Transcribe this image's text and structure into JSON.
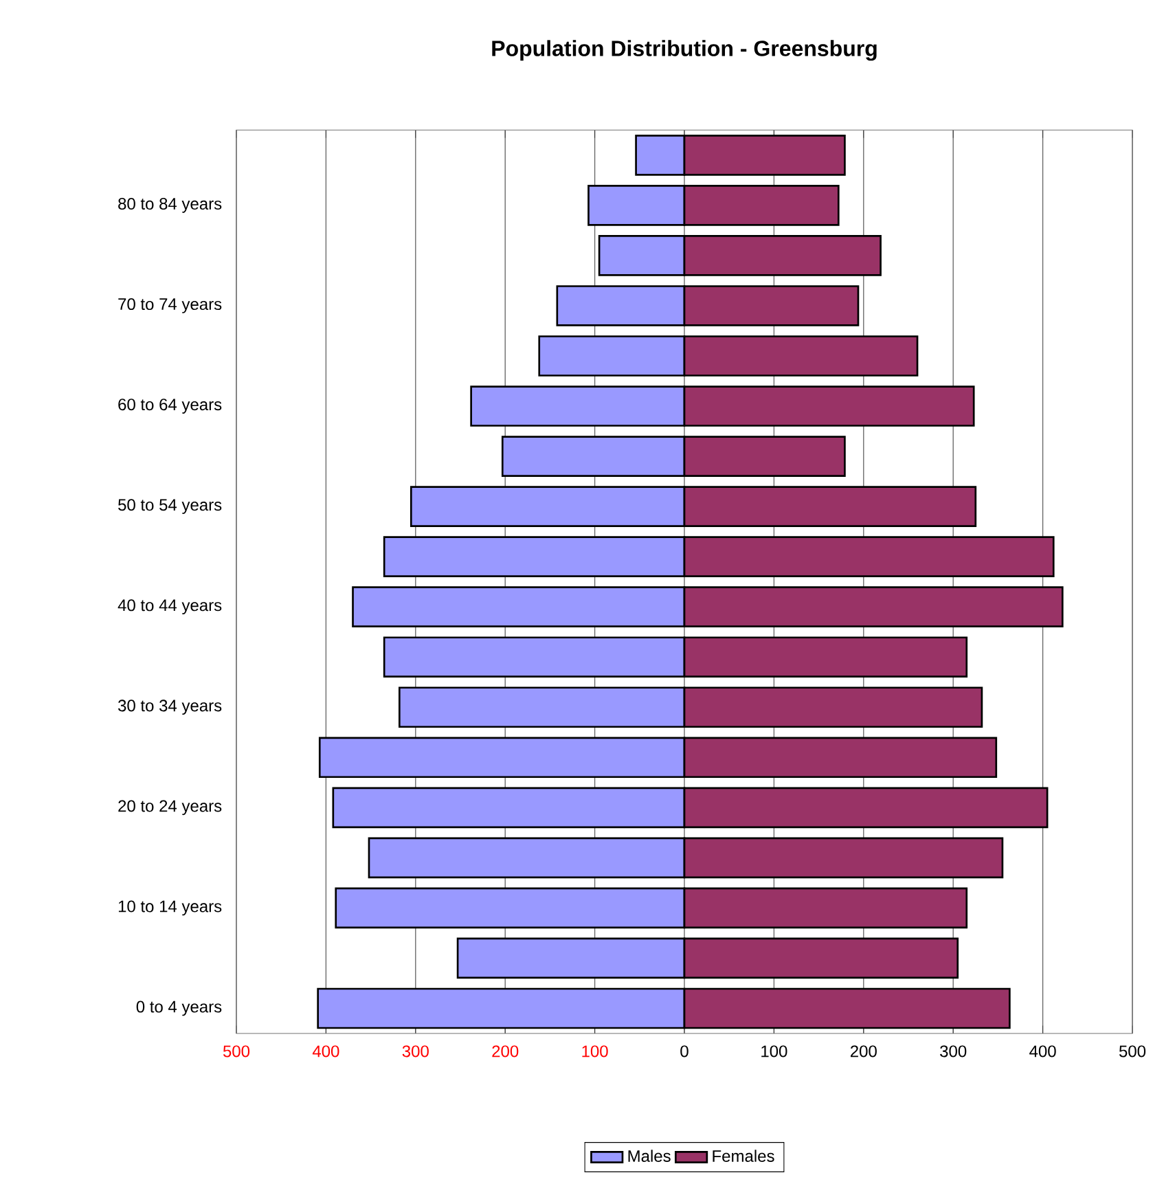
{
  "chart_data": {
    "type": "bar",
    "orientation": "horizontal",
    "title": "Population Distribution - Greensburg",
    "categories": [
      null,
      "80 to 84 years",
      null,
      "70 to 74 years",
      null,
      "60 to 64 years",
      null,
      "50 to 54 years",
      null,
      "40 to 44 years",
      null,
      "30 to 34 years",
      null,
      "20 to 24 years",
      null,
      "10 to 14 years",
      null,
      "0 to 4 years"
    ],
    "series": [
      {
        "name": "Males",
        "color": "#9999ff",
        "values": [
          -54,
          -107,
          -95,
          -142,
          -162,
          -238,
          -203,
          -305,
          -335,
          -370,
          -335,
          -318,
          -407,
          -392,
          -352,
          -389,
          -253,
          -409
        ]
      },
      {
        "name": "Females",
        "color": "#993366",
        "values": [
          179,
          172,
          219,
          194,
          260,
          323,
          179,
          325,
          412,
          422,
          315,
          332,
          348,
          405,
          355,
          315,
          305,
          363
        ]
      }
    ],
    "xlim": [
      -500,
      500
    ],
    "xticks": [
      {
        "value": -500,
        "label": "500"
      },
      {
        "value": -400,
        "label": "400"
      },
      {
        "value": -300,
        "label": "300"
      },
      {
        "value": -200,
        "label": "200"
      },
      {
        "value": -100,
        "label": "100"
      },
      0,
      100,
      200,
      300,
      400,
      500
    ],
    "stacked": true,
    "grid": "x",
    "legend": "bottom"
  }
}
